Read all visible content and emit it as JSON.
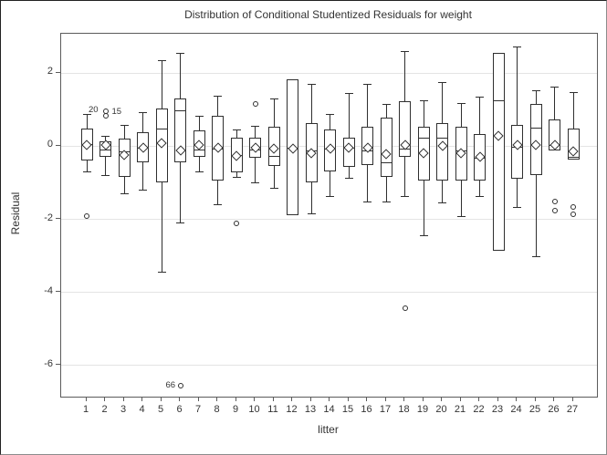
{
  "chart_data": {
    "type": "boxplot",
    "title": "Distribution of Conditional Studentized Residuals for weight",
    "xlabel": "litter",
    "ylabel": "Residual",
    "yticks": [
      2,
      0,
      -2,
      -4,
      -6
    ],
    "ylim": [
      -6.85,
      3.07
    ],
    "grid": "horizontal",
    "legend": "none",
    "categories": [
      "1",
      "2",
      "3",
      "4",
      "5",
      "6",
      "7",
      "8",
      "9",
      "10",
      "11",
      "12",
      "13",
      "14",
      "15",
      "16",
      "17",
      "18",
      "19",
      "20",
      "21",
      "22",
      "23",
      "24",
      "25",
      "26",
      "27"
    ],
    "colors": {
      "stroke": "#2f2f2f",
      "axis": "#5b5b5b",
      "grid": "#e4e4e4",
      "text": "#333333",
      "fill": "#ffffff"
    },
    "boxes": [
      {
        "litter": "1",
        "low": -0.7,
        "q1": -0.4,
        "median": 0.05,
        "q3": 0.47,
        "high": 0.87,
        "mean": 0.04,
        "outliers": [
          -1.91
        ],
        "labels": [
          {
            "text": "20",
            "value": 0.99,
            "dx": 2
          }
        ]
      },
      {
        "litter": "2",
        "low": -0.81,
        "q1": -0.28,
        "median": -0.11,
        "q3": 0.14,
        "high": 0.28,
        "mean": 0.02,
        "outliers": [
          0.83,
          0.95
        ],
        "labels": [
          {
            "text": "15",
            "value": 0.93,
            "dx": 7
          }
        ]
      },
      {
        "litter": "3",
        "low": -1.3,
        "q1": -0.84,
        "median": -0.15,
        "q3": 0.2,
        "high": 0.58,
        "mean": -0.25,
        "outliers": [],
        "labels": []
      },
      {
        "litter": "4",
        "low": -1.2,
        "q1": -0.45,
        "median": -0.05,
        "q3": 0.37,
        "high": 0.91,
        "mean": -0.05,
        "outliers": [],
        "labels": []
      },
      {
        "litter": "5",
        "low": -3.44,
        "q1": -0.98,
        "median": 0.48,
        "q3": 1.02,
        "high": 2.33,
        "mean": 0.08,
        "outliers": [],
        "labels": []
      },
      {
        "litter": "6",
        "low": -2.1,
        "q1": -0.45,
        "median": 0.97,
        "q3": 1.3,
        "high": 2.55,
        "mean": -0.12,
        "outliers": [
          -6.55
        ],
        "labels": [
          {
            "text": "66",
            "value": -6.55,
            "dx": -16
          }
        ]
      },
      {
        "litter": "7",
        "low": -0.7,
        "q1": -0.3,
        "median": -0.1,
        "q3": 0.43,
        "high": 0.83,
        "mean": 0.03,
        "outliers": [],
        "labels": []
      },
      {
        "litter": "8",
        "low": -1.6,
        "q1": -0.95,
        "median": -0.08,
        "q3": 0.82,
        "high": 1.37,
        "mean": -0.05,
        "outliers": [],
        "labels": []
      },
      {
        "litter": "9",
        "low": -0.85,
        "q1": -0.72,
        "median": -0.26,
        "q3": 0.24,
        "high": 0.45,
        "mean": -0.27,
        "outliers": [
          -2.1
        ],
        "labels": []
      },
      {
        "litter": "10",
        "low": -1.0,
        "q1": -0.32,
        "median": -0.1,
        "q3": 0.24,
        "high": 0.55,
        "mean": -0.04,
        "outliers": [
          1.16
        ],
        "labels": []
      },
      {
        "litter": "11",
        "low": -1.15,
        "q1": -0.55,
        "median": -0.28,
        "q3": 0.52,
        "high": 1.3,
        "mean": -0.07,
        "outliers": [],
        "labels": []
      },
      {
        "litter": "12",
        "low": -1.9,
        "q1": -1.9,
        "median": -0.05,
        "q3": 1.83,
        "high": 1.83,
        "mean": -0.06,
        "outliers": [],
        "labels": []
      },
      {
        "litter": "13",
        "low": -1.84,
        "q1": -1.0,
        "median": -0.13,
        "q3": 0.62,
        "high": 1.68,
        "mean": -0.2,
        "outliers": [],
        "labels": []
      },
      {
        "litter": "14",
        "low": -1.38,
        "q1": -0.7,
        "median": -0.07,
        "q3": 0.45,
        "high": 0.88,
        "mean": -0.07,
        "outliers": [],
        "labels": []
      },
      {
        "litter": "15",
        "low": -0.88,
        "q1": -0.57,
        "median": -0.05,
        "q3": 0.24,
        "high": 1.45,
        "mean": -0.04,
        "outliers": [],
        "labels": []
      },
      {
        "litter": "16",
        "low": -1.53,
        "q1": -0.51,
        "median": -0.13,
        "q3": 0.52,
        "high": 1.7,
        "mean": -0.05,
        "outliers": [],
        "labels": []
      },
      {
        "litter": "17",
        "low": -1.53,
        "q1": -0.84,
        "median": -0.45,
        "q3": 0.78,
        "high": 1.13,
        "mean": -0.22,
        "outliers": [],
        "labels": []
      },
      {
        "litter": "18",
        "low": -1.37,
        "q1": -0.28,
        "median": -0.07,
        "q3": 1.24,
        "high": 2.58,
        "mean": 0.03,
        "outliers": [
          -4.43
        ],
        "labels": []
      },
      {
        "litter": "19",
        "low": -2.45,
        "q1": -0.95,
        "median": 0.22,
        "q3": 0.53,
        "high": 1.24,
        "mean": -0.2,
        "outliers": [],
        "labels": []
      },
      {
        "litter": "20",
        "low": -1.55,
        "q1": -0.95,
        "median": 0.22,
        "q3": 0.63,
        "high": 1.74,
        "mean": 0.0,
        "outliers": [],
        "labels": []
      },
      {
        "litter": "21",
        "low": -1.93,
        "q1": -0.95,
        "median": -0.13,
        "q3": 0.52,
        "high": 1.16,
        "mean": -0.2,
        "outliers": [],
        "labels": []
      },
      {
        "litter": "22",
        "low": -1.37,
        "q1": -0.95,
        "median": -0.34,
        "q3": 0.33,
        "high": 1.35,
        "mean": -0.28,
        "outliers": [],
        "labels": []
      },
      {
        "litter": "23",
        "low": -2.87,
        "q1": -2.87,
        "median": 1.24,
        "q3": 2.55,
        "high": 2.55,
        "mean": 0.28,
        "outliers": [],
        "labels": []
      },
      {
        "litter": "24",
        "low": -1.68,
        "q1": -0.9,
        "median": -0.03,
        "q3": 0.58,
        "high": 2.72,
        "mean": 0.02,
        "outliers": [],
        "labels": []
      },
      {
        "litter": "25",
        "low": -3.03,
        "q1": -0.78,
        "median": 0.49,
        "q3": 1.16,
        "high": 1.52,
        "mean": 0.03,
        "outliers": [],
        "labels": []
      },
      {
        "litter": "26",
        "low": -0.12,
        "q1": -0.12,
        "median": 0.02,
        "q3": 0.74,
        "high": 1.62,
        "mean": 0.02,
        "outliers": [
          -1.52,
          -1.77
        ],
        "labels": []
      },
      {
        "litter": "27",
        "low": -0.37,
        "q1": -0.37,
        "median": -0.3,
        "q3": 0.49,
        "high": 1.47,
        "mean": -0.15,
        "outliers": [
          -1.66,
          -1.86
        ],
        "labels": []
      }
    ]
  }
}
